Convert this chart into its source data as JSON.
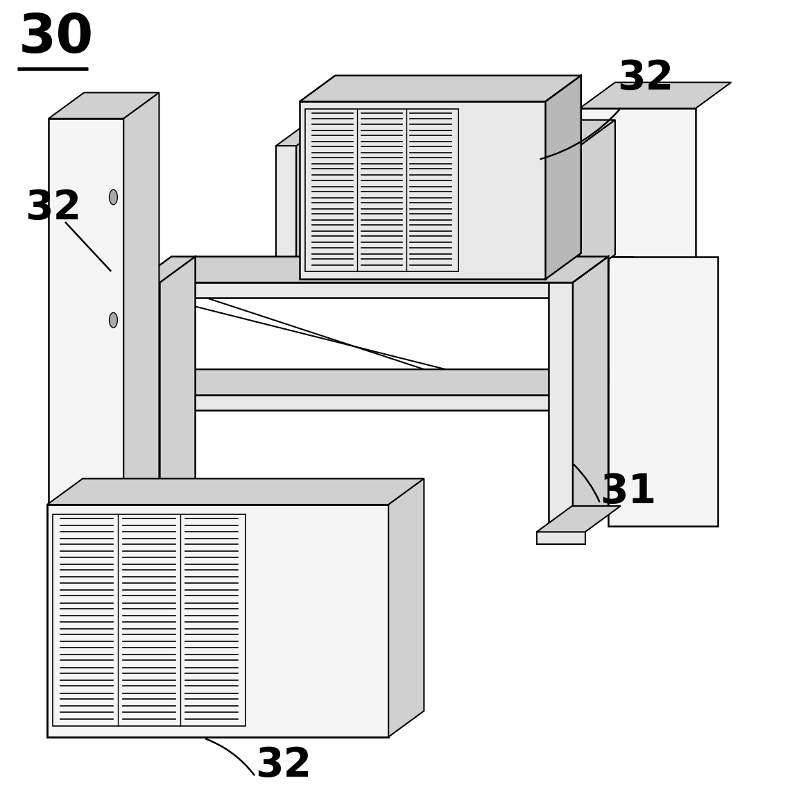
{
  "background_color": "#ffffff",
  "line_color": "#000000",
  "label_30": "30",
  "label_31": "31",
  "label_32": "32",
  "fill_white": "#f5f5f5",
  "fill_light": "#e8e8e8",
  "fill_mid": "#d0d0d0",
  "fill_dark": "#b8b8b8"
}
